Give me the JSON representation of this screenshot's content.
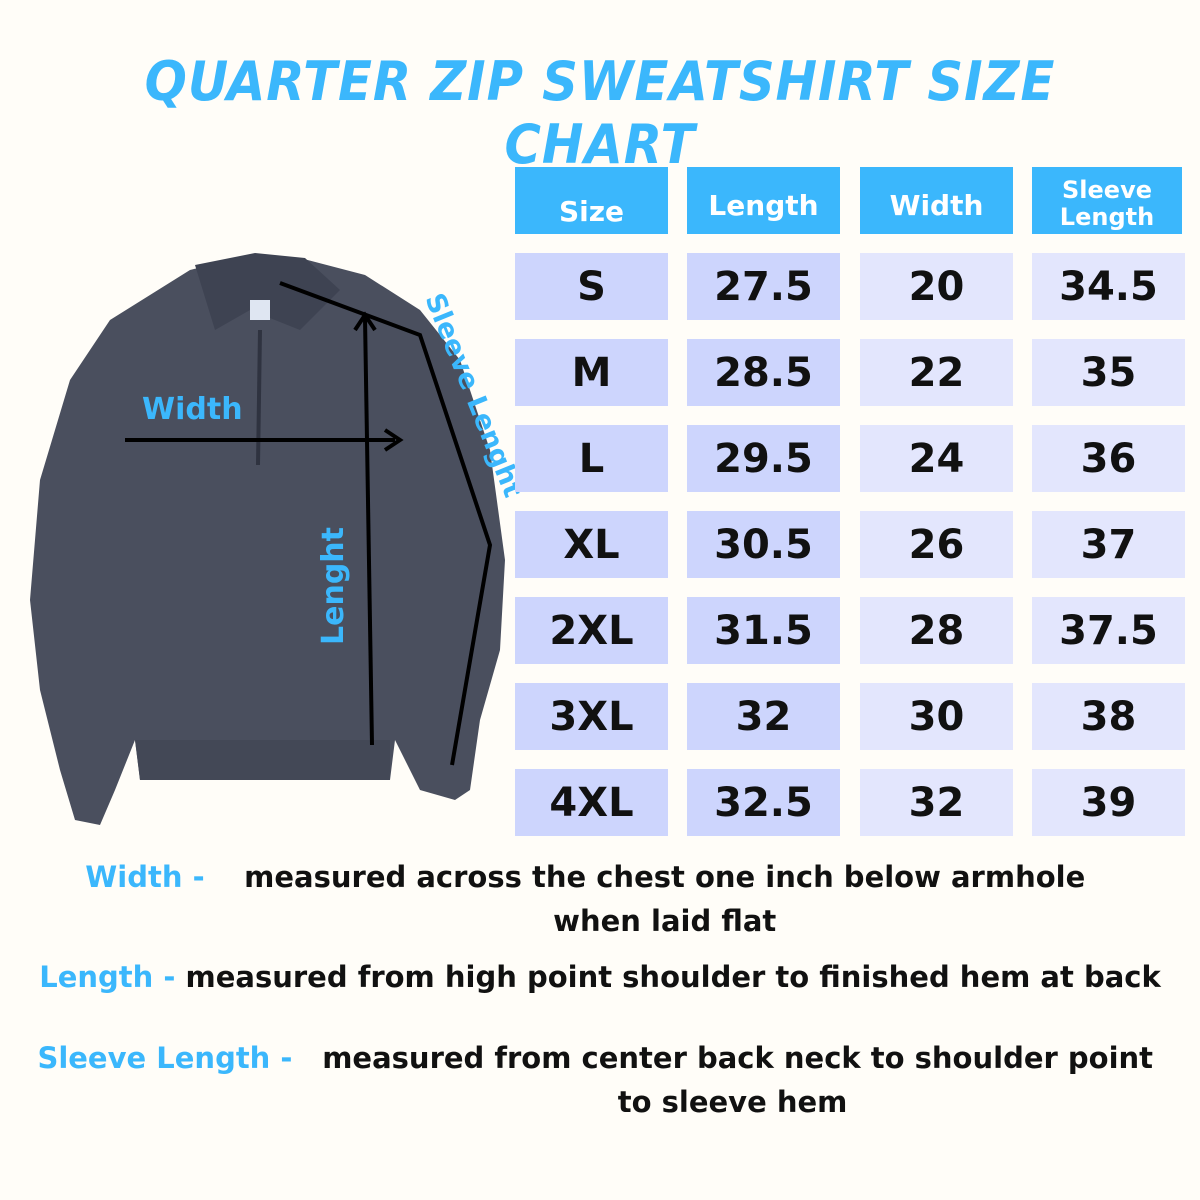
{
  "title": "QUARTER ZIP SWEATSHIRT SIZE CHART",
  "colors": {
    "accent": "#3bb7fc",
    "cell_dark": "#cdd5fd",
    "cell_light": "#e3e6fd",
    "background": "#fffdf8",
    "garment": "#4a4f5e"
  },
  "diagram": {
    "width_label": "Width",
    "length_label": "Lenght",
    "sleeve_label": "Sleeve Lenght"
  },
  "table": {
    "headers": [
      "Size",
      "Length",
      "Width",
      "Sleeve Length"
    ],
    "rows": [
      [
        "S",
        "27.5",
        "20",
        "34.5"
      ],
      [
        "M",
        "28.5",
        "22",
        "35"
      ],
      [
        "L",
        "29.5",
        "24",
        "36"
      ],
      [
        "XL",
        "30.5",
        "26",
        "37"
      ],
      [
        "2XL",
        "31.5",
        "28",
        "37.5"
      ],
      [
        "3XL",
        "32",
        "30",
        "38"
      ],
      [
        "4XL",
        "32.5",
        "32",
        "39"
      ]
    ]
  },
  "notes": [
    {
      "key": "Width - ",
      "text": "measured across the chest one inch below armhole when laid flat"
    },
    {
      "key": "Length - ",
      "text": "measured from high point shoulder to finished hem at back"
    },
    {
      "key": "Sleeve Length - ",
      "text": " measured from center back neck to shoulder point to sleeve hem"
    }
  ]
}
